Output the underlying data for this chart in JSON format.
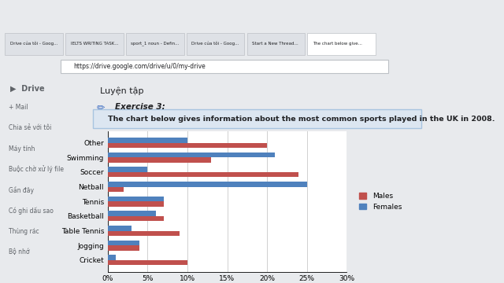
{
  "sports": [
    "Other",
    "Swimming",
    "Soccer",
    "Netball",
    "Tennis",
    "Basketball",
    "Table Tennis",
    "Jogging",
    "Cricket"
  ],
  "males": [
    20,
    13,
    24,
    2,
    7,
    7,
    9,
    4,
    10
  ],
  "females": [
    10,
    21,
    5,
    25,
    7,
    6,
    3,
    4,
    1
  ],
  "male_color": "#C0504D",
  "female_color": "#4F81BD",
  "xlim": [
    0,
    30
  ],
  "xticks": [
    0,
    5,
    10,
    15,
    20,
    25,
    30
  ],
  "xtick_labels": [
    "0%",
    "5%",
    "10%",
    "15%",
    "20%",
    "25%",
    "30%"
  ],
  "legend_males": "Males",
  "legend_females": "Females",
  "bg_page": "#ffffff",
  "bg_outer": "#f1f3f4",
  "header_box_text": "The chart below gives information about the most common sports played in the UK in 2008.",
  "header_box_color": "#dce6f1",
  "header_box_border": "#a8c4e0",
  "top_label": "Luyện tập",
  "exercise_label": "Exercise 3:",
  "browser_bar_color": "#3c4043",
  "tab_bar_color": "#dee1e6",
  "page_bg": "#e8eaed"
}
